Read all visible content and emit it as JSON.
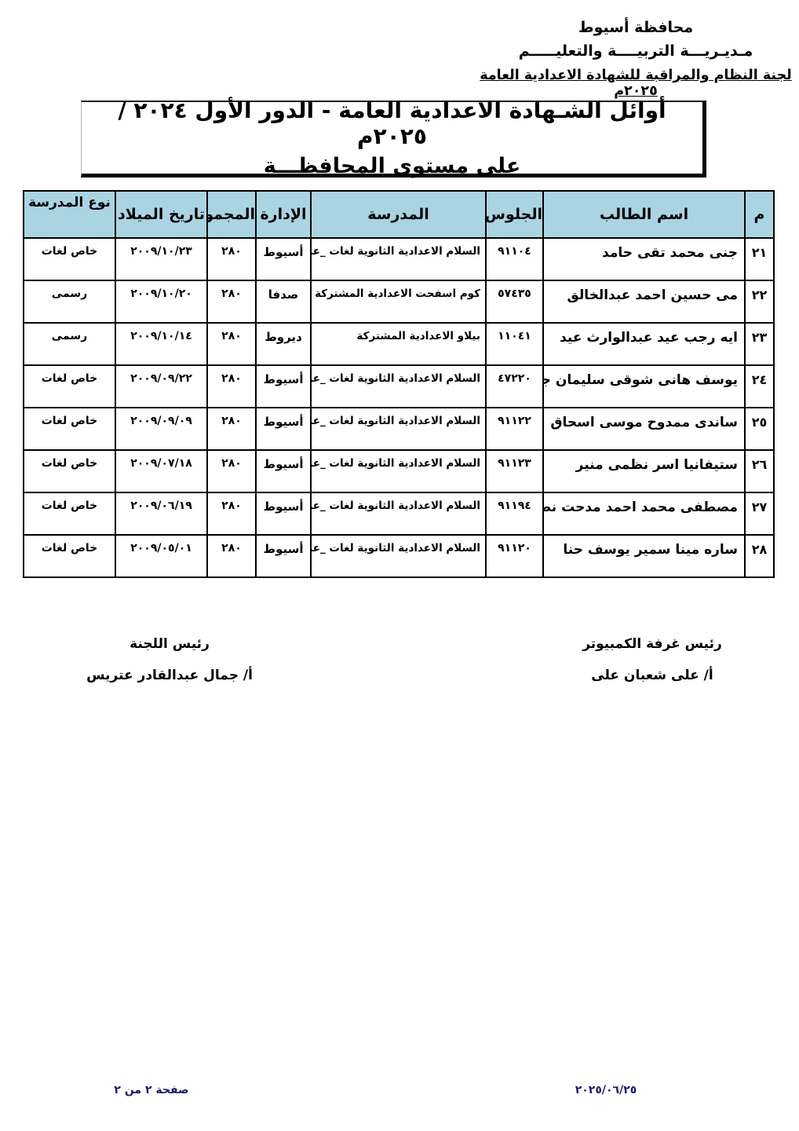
{
  "letterhead": {
    "line1": "محافظة أسيوط",
    "line2": "مـديـريـــة التربيــــة والتعليـــــم",
    "line3": "لجنة النظام والمراقبة للشهادة الاعدادية العامة ٢٠٢٥م"
  },
  "title": {
    "line1": "أوائل الشـهادة الاعدادية العامة - الدور الأول  ٢٠٢٤ / ٢٠٢٥م",
    "line2": "على مستوى المحافظـــة"
  },
  "table": {
    "headers": [
      "م",
      "اسم الطالب",
      "الجلوس",
      "المدرسة",
      "الإدارة",
      "المجموع",
      "تاريخ الميلاد",
      "نوع المدرسة"
    ],
    "rows": [
      {
        "no": "٢١",
        "name": "جنى محمد تقى حامد",
        "seat": "٩١١٠٤",
        "school": "السلام الاعدادية الثانوية لغات _عربى",
        "admin": "أسيوط",
        "total": "٢٨٠",
        "dob": "٢٠٠٩/١٠/٢٣",
        "school_type": "خاص لغات"
      },
      {
        "no": "٢٢",
        "name": "مى حسين احمد عبدالخالق",
        "seat": "٥٧٤٣٥",
        "school": "كوم اسفحت الاعدادية المشتركة",
        "admin": "صدفا",
        "total": "٢٨٠",
        "dob": "٢٠٠٩/١٠/٢٠",
        "school_type": "رسمى"
      },
      {
        "no": "٢٣",
        "name": "ايه رجب عيد عبدالوارث عيد",
        "seat": "١١٠٤١",
        "school": "بيلاو الاعدادية المشتركة",
        "admin": "ديروط",
        "total": "٢٨٠",
        "dob": "٢٠٠٩/١٠/١٤",
        "school_type": "رسمى"
      },
      {
        "no": "٢٤",
        "name": "يوسف هانى شوقى سليمان جاد الله",
        "seat": "٤٧٢٢٠",
        "school": "السلام الاعدادية الثانوية لغات _عربى",
        "admin": "أسيوط",
        "total": "٢٨٠",
        "dob": "٢٠٠٩/٠٩/٢٢",
        "school_type": "خاص لغات"
      },
      {
        "no": "٢٥",
        "name": "ساندى ممدوح موسى اسحاق",
        "seat": "٩١١٢٢",
        "school": "السلام الاعدادية الثانوية لغات _عربى",
        "admin": "أسيوط",
        "total": "٢٨٠",
        "dob": "٢٠٠٩/٠٩/٠٩",
        "school_type": "خاص لغات"
      },
      {
        "no": "٢٦",
        "name": "ستيفانيا اسر نظمى منير",
        "seat": "٩١١٢٣",
        "school": "السلام الاعدادية الثانوية لغات _عربى",
        "admin": "أسيوط",
        "total": "٢٨٠",
        "dob": "٢٠٠٩/٠٧/١٨",
        "school_type": "خاص لغات"
      },
      {
        "no": "٢٧",
        "name": "مصطفى محمد احمد مدحت نصر",
        "seat": "٩١١٩٤",
        "school": "السلام الاعدادية الثانوية لغات _عربى",
        "admin": "أسيوط",
        "total": "٢٨٠",
        "dob": "٢٠٠٩/٠٦/١٩",
        "school_type": "خاص لغات"
      },
      {
        "no": "٢٨",
        "name": "ساره مينا سمير يوسف حنا",
        "seat": "٩١١٢٠",
        "school": "السلام الاعدادية الثانوية لغات _عربى",
        "admin": "أسيوط",
        "total": "٢٨٠",
        "dob": "٢٠٠٩/٠٥/٠١",
        "school_type": "خاص لغات"
      }
    ]
  },
  "signatures": {
    "right_title": "رئيس غرفة الكمبيوتر",
    "right_name": "أ/ على شعبان على",
    "left_title": "رئيس اللجنة",
    "left_name": "أ/ جمال عبدالقادر عتريس"
  },
  "footer": {
    "date": "٢٠٢٥/٠٦/٢٥",
    "page_label": "صفحة ٢ من ٢"
  },
  "colors": {
    "table_header_bg": "#aad4e2",
    "footer_text": "#1a1a70",
    "border": "#000000"
  }
}
